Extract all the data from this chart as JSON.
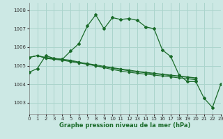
{
  "xlabel": "Graphe pression niveau de la mer (hPa)",
  "background_color": "#cce8e4",
  "grid_color": "#aad4cc",
  "line_color": "#1a6b2a",
  "ylim": [
    1002.4,
    1008.4
  ],
  "xlim": [
    0,
    23
  ],
  "yticks": [
    1003,
    1004,
    1005,
    1006,
    1007,
    1008
  ],
  "xticks": [
    0,
    1,
    2,
    3,
    4,
    5,
    6,
    7,
    8,
    9,
    10,
    11,
    12,
    13,
    14,
    15,
    16,
    17,
    18,
    19,
    20,
    21,
    22,
    23
  ],
  "series": [
    {
      "x": [
        0,
        1,
        2,
        3,
        4,
        5,
        6,
        7,
        8,
        9,
        10,
        11,
        12,
        13,
        14,
        15,
        16,
        17,
        18,
        19,
        20,
        21,
        22,
        23
      ],
      "y": [
        1004.65,
        1004.85,
        1005.55,
        1005.4,
        1005.35,
        1005.8,
        1006.2,
        1007.15,
        1007.75,
        1007.0,
        1007.6,
        1007.5,
        1007.55,
        1007.45,
        1007.1,
        1007.0,
        1005.85,
        1005.5,
        1004.5,
        1004.15,
        1004.15,
        1003.25,
        1002.75,
        1004.0
      ]
    },
    {
      "x": [
        0,
        1,
        2,
        3,
        4,
        5,
        6,
        7,
        8,
        9,
        10,
        11,
        12,
        13,
        14,
        15,
        16,
        17,
        18,
        19,
        20
      ],
      "y": [
        1005.45,
        1005.55,
        1005.45,
        1005.4,
        1005.35,
        1005.3,
        1005.2,
        1005.1,
        1005.0,
        1004.9,
        1004.8,
        1004.72,
        1004.65,
        1004.6,
        1004.55,
        1004.5,
        1004.45,
        1004.4,
        1004.35,
        1004.3,
        1004.25
      ]
    },
    {
      "x": [
        0,
        1,
        2,
        3,
        4,
        5,
        6,
        7,
        8,
        9,
        10,
        11,
        12,
        13,
        14,
        15,
        16,
        17,
        18,
        19,
        20
      ],
      "y": [
        1005.45,
        1005.55,
        1005.4,
        1005.35,
        1005.3,
        1005.22,
        1005.15,
        1005.08,
        1005.0,
        1004.93,
        1004.87,
        1004.8,
        1004.73,
        1004.67,
        1004.62,
        1004.57,
        1004.52,
        1004.47,
        1004.43,
        1004.38,
        1004.33
      ]
    },
    {
      "x": [
        0,
        1,
        2,
        3,
        4,
        5,
        6,
        7,
        8,
        9,
        10,
        11,
        12,
        13,
        14,
        15,
        16,
        17,
        18,
        19,
        20
      ],
      "y": [
        1005.45,
        1005.55,
        1005.43,
        1005.38,
        1005.32,
        1005.26,
        1005.18,
        1005.12,
        1005.05,
        1004.97,
        1004.9,
        1004.83,
        1004.77,
        1004.7,
        1004.65,
        1004.6,
        1004.55,
        1004.5,
        1004.45,
        1004.4,
        1004.35
      ]
    }
  ]
}
